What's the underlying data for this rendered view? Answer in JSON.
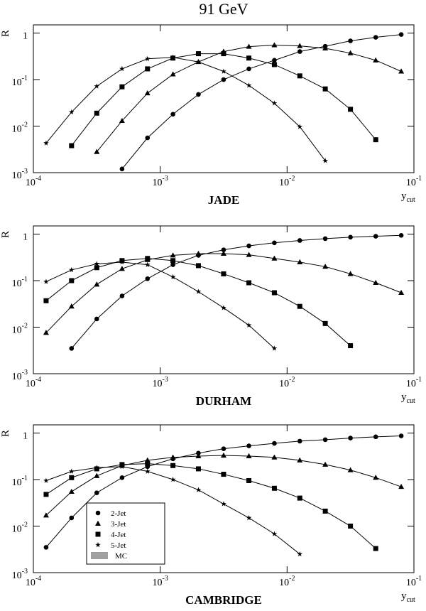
{
  "title": "91 GeV",
  "chart_data": [
    {
      "type": "line",
      "label": "JADE",
      "ylabel": "R",
      "xlabel": "y",
      "xlabel_sub": "cut",
      "log_x": true,
      "log_y": true,
      "xlim": [
        0.0001,
        0.1
      ],
      "ylim": [
        0.001,
        1.5
      ],
      "xticks": [
        {
          "value": 0.0001,
          "label": "10",
          "exponent": "-4"
        },
        {
          "value": 0.001,
          "label": "10",
          "exponent": "-3"
        },
        {
          "value": 0.01,
          "label": "10",
          "exponent": "-2"
        },
        {
          "value": 0.1,
          "label": "10",
          "exponent": "-1"
        }
      ],
      "yticks": [
        1,
        {
          "value": 0.1,
          "label": "10",
          "exponent": "-1"
        },
        {
          "value": 0.01,
          "label": "10",
          "exponent": "-2"
        },
        {
          "value": 0.001,
          "label": "10",
          "exponent": "-3"
        }
      ],
      "x": [
        0.000126,
        0.0002,
        0.000316,
        0.0005,
        0.000794,
        0.00126,
        0.002,
        0.00316,
        0.005,
        0.00794,
        0.0126,
        0.02,
        0.0316,
        0.05,
        0.0794
      ],
      "series": [
        {
          "name": "2-Jet",
          "marker": "circle",
          "color": "#000000",
          "values": [
            null,
            null,
            null,
            0.0012,
            0.0056,
            0.018,
            0.048,
            0.1,
            0.17,
            0.26,
            0.4,
            0.52,
            0.68,
            0.81,
            0.93
          ]
        },
        {
          "name": "3-Jet",
          "marker": "triangle",
          "color": "#000000",
          "values": [
            null,
            null,
            0.0028,
            0.013,
            0.051,
            0.13,
            0.24,
            0.4,
            0.51,
            0.55,
            0.53,
            0.47,
            0.37,
            0.26,
            0.15
          ]
        },
        {
          "name": "4-Jet",
          "marker": "square",
          "color": "#000000",
          "values": [
            null,
            0.0038,
            0.019,
            0.07,
            0.17,
            0.29,
            0.36,
            0.36,
            0.29,
            0.21,
            0.12,
            0.063,
            0.023,
            0.0051,
            null
          ]
        },
        {
          "name": "5-Jet",
          "marker": "star",
          "color": "#000000",
          "values": [
            0.0043,
            0.02,
            0.072,
            0.17,
            0.28,
            0.3,
            0.24,
            0.15,
            0.075,
            0.031,
            0.0097,
            0.0018,
            null,
            null,
            null
          ]
        }
      ]
    },
    {
      "type": "line",
      "label": "DURHAM",
      "ylabel": "R",
      "xlabel": "y",
      "xlabel_sub": "cut",
      "log_x": true,
      "log_y": true,
      "xlim": [
        0.0001,
        0.1
      ],
      "ylim": [
        0.001,
        1.5
      ],
      "xticks": [
        {
          "value": 0.0001,
          "label": "10",
          "exponent": "-4"
        },
        {
          "value": 0.001,
          "label": "10",
          "exponent": "-3"
        },
        {
          "value": 0.01,
          "label": "10",
          "exponent": "-2"
        },
        {
          "value": 0.1,
          "label": "10",
          "exponent": "-1"
        }
      ],
      "yticks": [
        1,
        {
          "value": 0.1,
          "label": "10",
          "exponent": "-1"
        },
        {
          "value": 0.01,
          "label": "10",
          "exponent": "-2"
        },
        {
          "value": 0.001,
          "label": "10",
          "exponent": "-3"
        }
      ],
      "x": [
        0.000126,
        0.0002,
        0.000316,
        0.0005,
        0.000794,
        0.00126,
        0.002,
        0.00316,
        0.005,
        0.00794,
        0.0126,
        0.02,
        0.0316,
        0.05,
        0.0794
      ],
      "series": [
        {
          "name": "2-Jet",
          "marker": "circle",
          "color": "#000000",
          "values": [
            null,
            0.0035,
            0.015,
            0.047,
            0.11,
            0.22,
            0.35,
            0.46,
            0.56,
            0.65,
            0.73,
            0.8,
            0.86,
            0.9,
            0.94
          ]
        },
        {
          "name": "3-Jet",
          "marker": "triangle",
          "color": "#000000",
          "values": [
            0.0076,
            0.028,
            0.083,
            0.18,
            0.28,
            0.35,
            0.38,
            0.38,
            0.36,
            0.3,
            0.25,
            0.2,
            0.14,
            0.09,
            0.055
          ]
        },
        {
          "name": "4-Jet",
          "marker": "square",
          "color": "#000000",
          "values": [
            0.037,
            0.1,
            0.19,
            0.27,
            0.3,
            0.27,
            0.21,
            0.14,
            0.09,
            0.055,
            0.028,
            0.012,
            0.004,
            null,
            null
          ]
        },
        {
          "name": "5-Jet",
          "marker": "star",
          "color": "#000000",
          "values": [
            0.095,
            0.17,
            0.23,
            0.25,
            0.22,
            0.12,
            0.058,
            0.026,
            0.011,
            0.0035,
            null,
            null,
            null,
            null,
            null
          ]
        }
      ]
    },
    {
      "type": "line",
      "label": "CAMBRIDGE",
      "ylabel": "R",
      "xlabel": "y",
      "xlabel_sub": "cut",
      "log_x": true,
      "log_y": true,
      "xlim": [
        0.0001,
        0.1
      ],
      "ylim": [
        0.001,
        1.5
      ],
      "legend": "lower-left",
      "legend_extra": "MC",
      "xticks": [
        {
          "value": 0.0001,
          "label": "10",
          "exponent": "-4"
        },
        {
          "value": 0.001,
          "label": "10",
          "exponent": "-3"
        },
        {
          "value": 0.01,
          "label": "10",
          "exponent": "-2"
        },
        {
          "value": 0.1,
          "label": "10",
          "exponent": "-1"
        }
      ],
      "yticks": [
        1,
        {
          "value": 0.1,
          "label": "10",
          "exponent": "-1"
        },
        {
          "value": 0.01,
          "label": "10",
          "exponent": "-2"
        },
        {
          "value": 0.001,
          "label": "10",
          "exponent": "-3"
        }
      ],
      "x": [
        0.000126,
        0.0002,
        0.000316,
        0.0005,
        0.000794,
        0.00126,
        0.002,
        0.00316,
        0.005,
        0.00794,
        0.0126,
        0.02,
        0.0316,
        0.05,
        0.0794
      ],
      "series": [
        {
          "name": "2-Jet",
          "marker": "circle",
          "color": "#000000",
          "values": [
            0.0035,
            0.015,
            0.052,
            0.11,
            0.19,
            0.28,
            0.37,
            0.46,
            0.53,
            0.6,
            0.67,
            0.72,
            0.78,
            0.83,
            0.87
          ]
        },
        {
          "name": "3-Jet",
          "marker": "triangle",
          "color": "#000000",
          "values": [
            0.017,
            0.055,
            0.12,
            0.2,
            0.26,
            0.3,
            0.32,
            0.33,
            0.32,
            0.3,
            0.26,
            0.21,
            0.16,
            0.11,
            0.07
          ]
        },
        {
          "name": "4-Jet",
          "marker": "square",
          "color": "#000000",
          "values": [
            0.048,
            0.11,
            0.17,
            0.21,
            0.22,
            0.2,
            0.17,
            0.13,
            0.095,
            0.065,
            0.04,
            0.021,
            0.01,
            0.0033,
            null
          ]
        },
        {
          "name": "5-Jet",
          "marker": "star",
          "color": "#000000",
          "values": [
            0.095,
            0.15,
            0.18,
            0.19,
            0.15,
            0.1,
            0.06,
            0.03,
            0.015,
            0.0068,
            0.0025,
            null,
            null,
            null,
            null
          ]
        }
      ]
    }
  ]
}
